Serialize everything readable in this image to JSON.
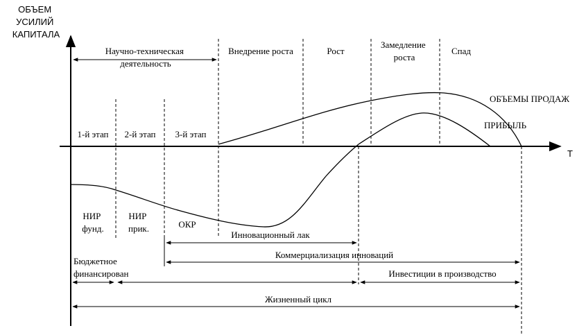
{
  "axes": {
    "y_label_lines": [
      "ОБЪЕМ",
      "УСИЛИЙ",
      "КАПИТАЛА"
    ],
    "x_label": "T"
  },
  "phases": {
    "science": [
      "Научно-техническая",
      "деятельность"
    ],
    "implementation": "Внедрение роста",
    "growth": "Рост",
    "slowdown": [
      "Замедление",
      "роста"
    ],
    "decline": "Спад"
  },
  "stages": {
    "stage1": "1-й этап",
    "stage2": "2-й этап",
    "stage3": "3-й этап"
  },
  "curves": {
    "sales": "ОБЪЕМЫ ПРОДАЖ",
    "profit": "ПРИБЫЛЬ"
  },
  "work_types": {
    "nir_fund": [
      "НИР",
      "фунд."
    ],
    "nir_applied": [
      "НИР",
      "прик."
    ],
    "okr": "ОКР"
  },
  "spans": {
    "innovation_lag": "Инновационный лак",
    "commercialization": "Коммерциализация инноваций",
    "budget": [
      "Бюджетное",
      "финансирован"
    ],
    "investments": "Инвестиции в производство",
    "life_cycle": "Жизненный цикл"
  }
}
